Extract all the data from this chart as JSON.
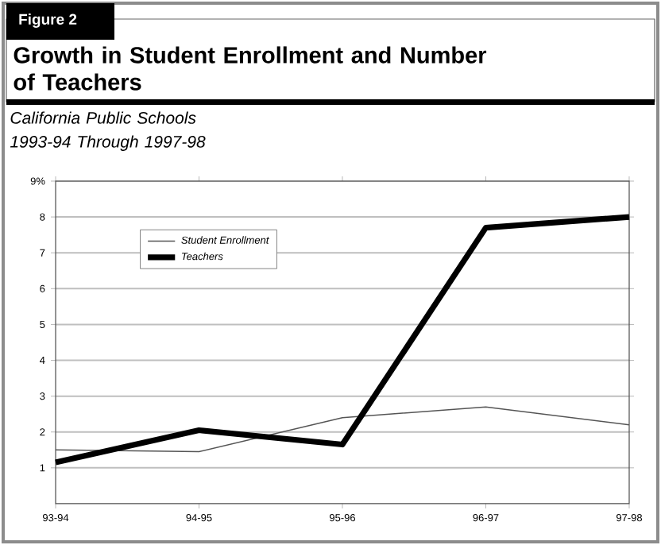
{
  "chart_data": {
    "type": "line",
    "title": "Growth in Student Enrollment and Number of Teachers",
    "subtitle": "California Public Schools\n1993-94 Through 1997-98",
    "annotations": [
      "Figure 2"
    ],
    "categories": [
      "93-94",
      "94-95",
      "95-96",
      "96-97",
      "97-98"
    ],
    "series": [
      {
        "name": "Student Enrollment",
        "color": "#555555",
        "values": [
          1.5,
          1.45,
          2.4,
          2.7,
          2.2
        ]
      },
      {
        "name": "Teachers",
        "color": "#000000",
        "values": [
          1.15,
          2.05,
          1.65,
          7.7,
          8.0
        ]
      }
    ],
    "ylim": [
      0,
      9
    ],
    "yticks": [
      1,
      2,
      3,
      4,
      5,
      6,
      7,
      8,
      {
        "value": 9,
        "label": "9%"
      }
    ],
    "grid": "y",
    "legend": "top left",
    "line_style": "solid"
  }
}
